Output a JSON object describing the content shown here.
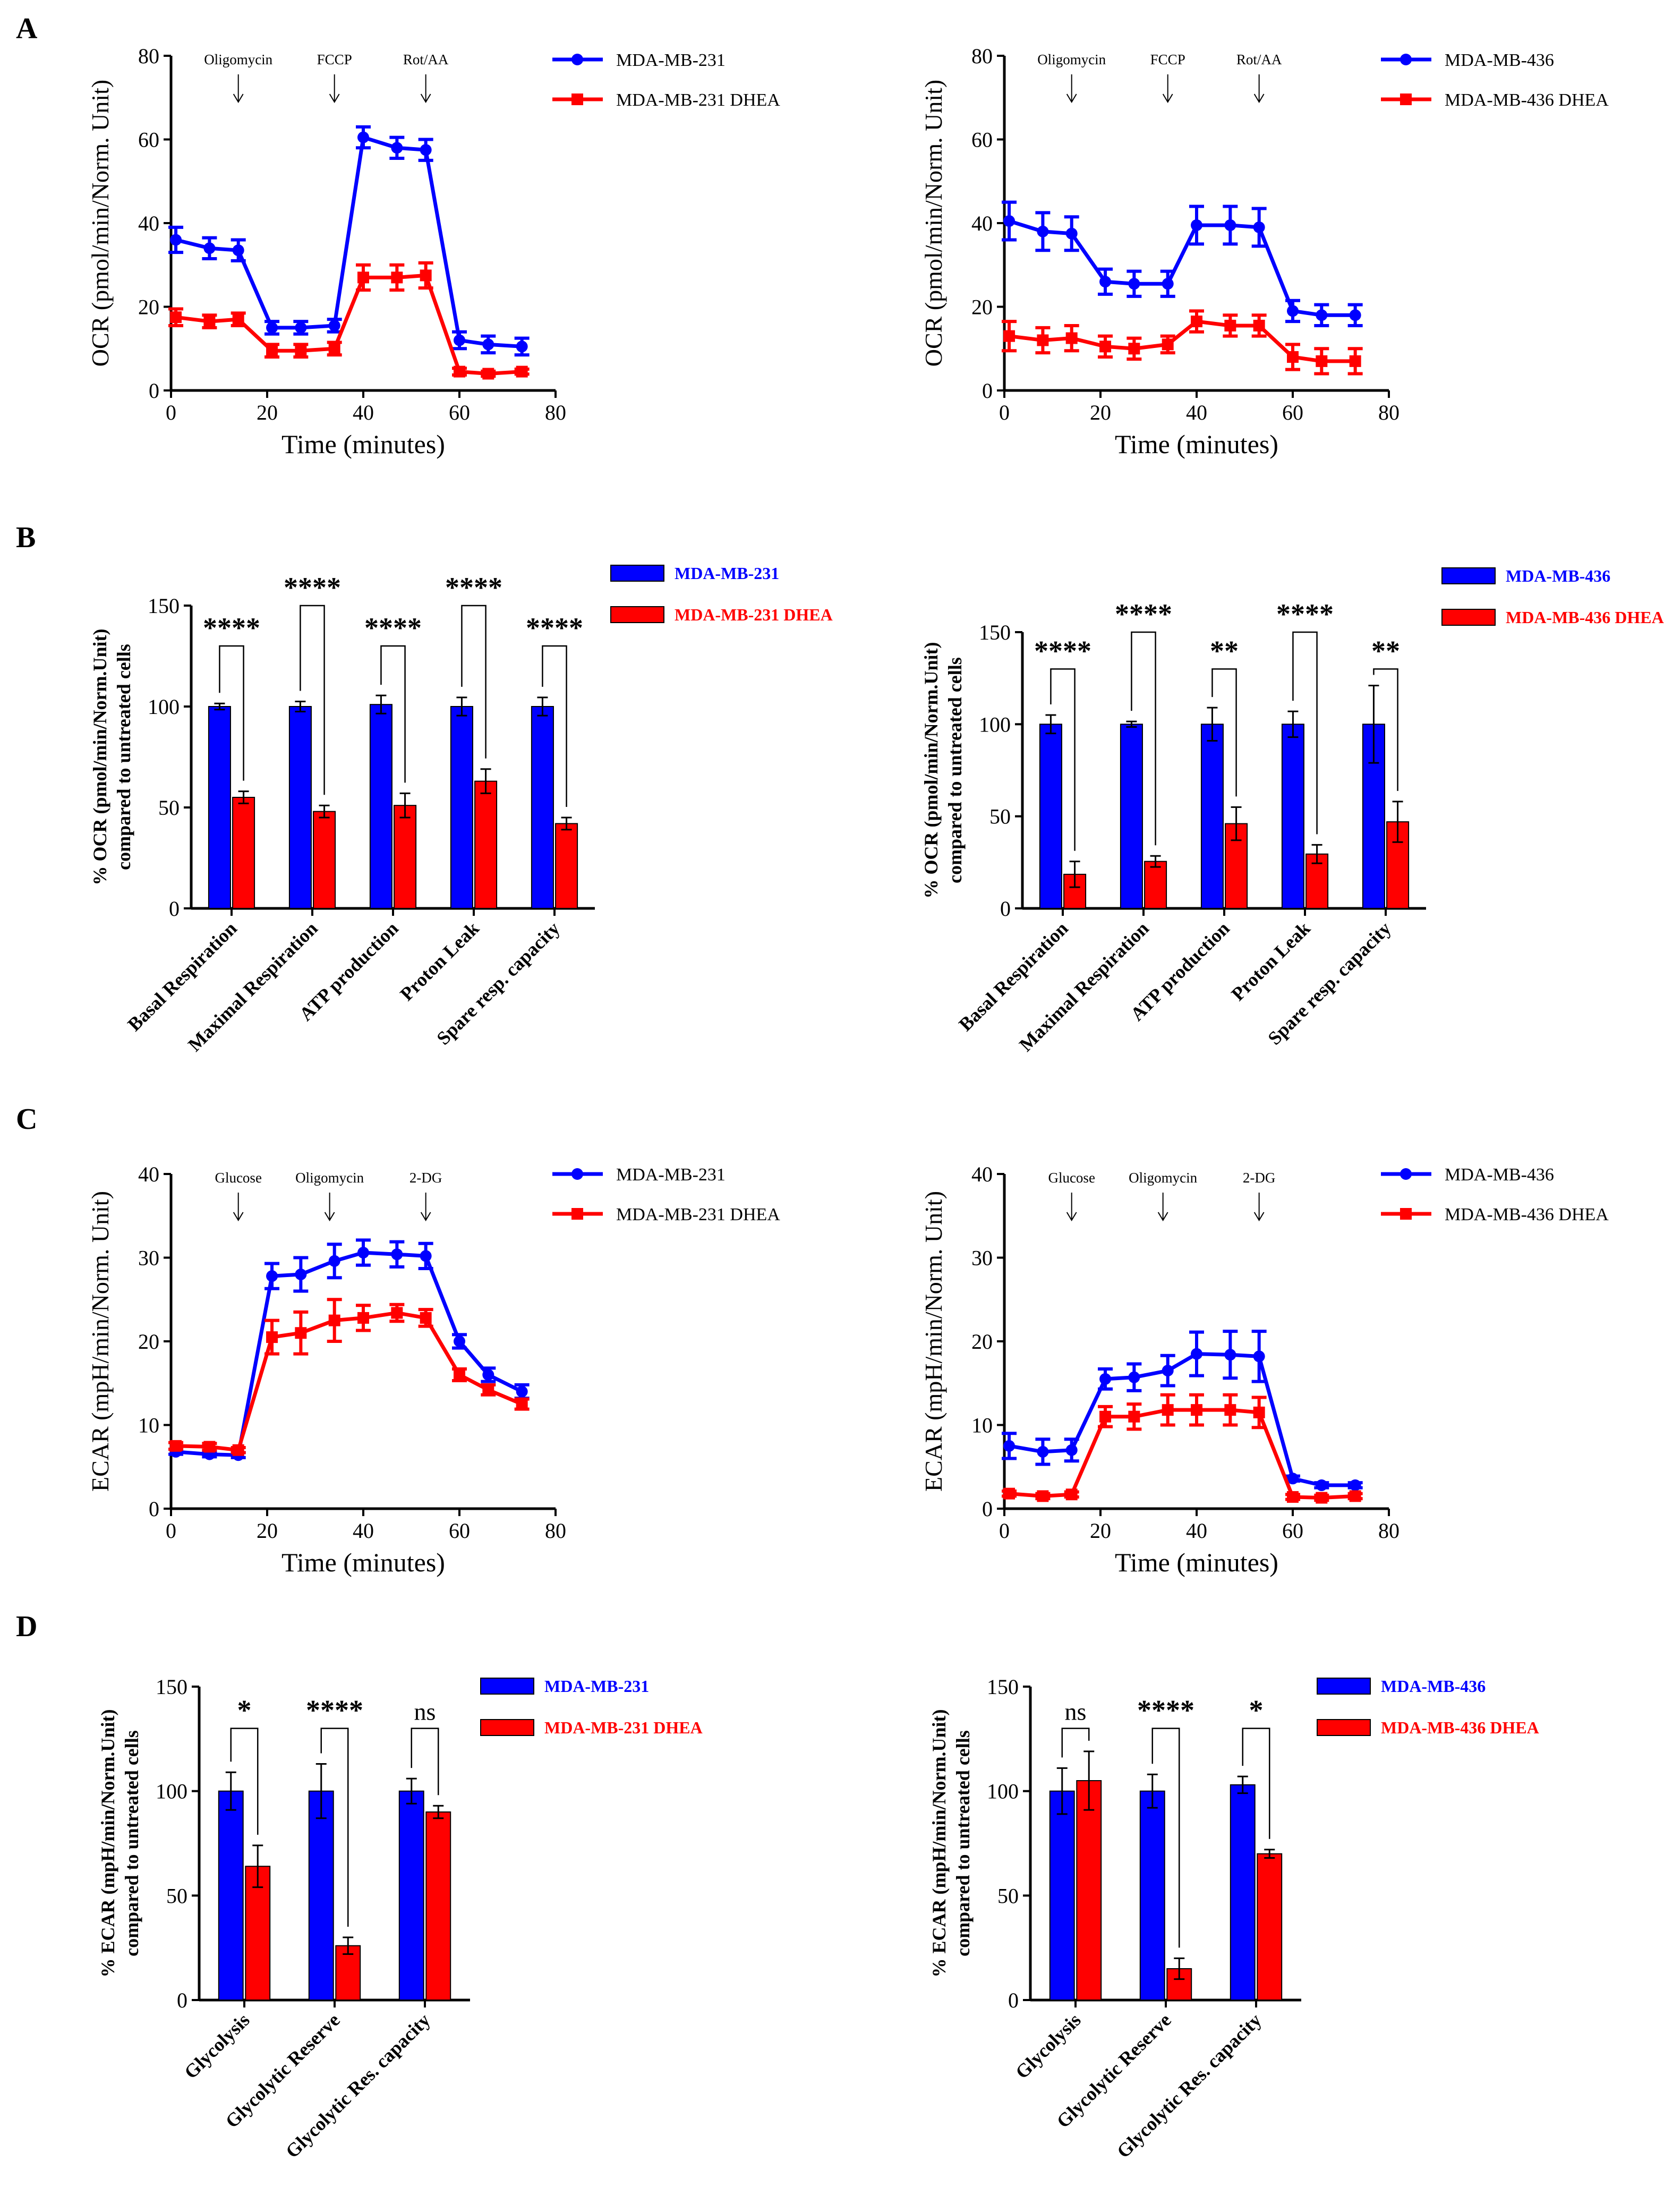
{
  "figure": {
    "panel_letters": [
      "A",
      "B",
      "C",
      "D"
    ],
    "colors": {
      "control": "#0000ff",
      "dhea": "#ff0000",
      "axis": "#000000"
    }
  },
  "chart_data": [
    {
      "id": "A1",
      "type": "line",
      "panel": "A",
      "xlabel": "Time (minutes)",
      "ylabel": "OCR (pmol/min/Norm. Unit)",
      "xlim": [
        0,
        80
      ],
      "ylim": [
        0,
        80
      ],
      "xticks": [
        0,
        20,
        40,
        60,
        80
      ],
      "yticks": [
        0,
        20,
        40,
        60,
        80
      ],
      "annotations": [
        {
          "label": "Oligomycin",
          "x": 14
        },
        {
          "label": "FCCP",
          "x": 34
        },
        {
          "label": "Rot/AA",
          "x": 53
        }
      ],
      "x": [
        1,
        8,
        14,
        21,
        27,
        34,
        40,
        47,
        53,
        60,
        66,
        73
      ],
      "series": [
        {
          "name": "MDA-MB-231",
          "marker": "circle",
          "color": "#0000ff",
          "values": [
            36,
            34,
            33.5,
            15,
            15,
            15.5,
            60.5,
            58,
            57.5,
            12,
            11,
            10.5
          ],
          "errors": [
            3,
            2.5,
            2.5,
            1.5,
            1.5,
            1.5,
            2.5,
            2.5,
            2.5,
            2,
            2,
            2
          ]
        },
        {
          "name": "MDA-MB-231 DHEA",
          "marker": "square",
          "color": "#ff0000",
          "values": [
            17.5,
            16.5,
            17,
            9.5,
            9.5,
            10,
            27,
            27,
            27.5,
            4.5,
            4,
            4.5
          ],
          "errors": [
            2,
            1.5,
            1.5,
            1.5,
            1.5,
            1.5,
            3,
            3,
            3,
            0.8,
            0.6,
            0.6
          ]
        }
      ]
    },
    {
      "id": "A2",
      "type": "line",
      "panel": "A",
      "xlabel": "Time (minutes)",
      "ylabel": "OCR (pmol/min/Norm. Unit)",
      "xlim": [
        0,
        80
      ],
      "ylim": [
        0,
        80
      ],
      "xticks": [
        0,
        20,
        40,
        60,
        80
      ],
      "yticks": [
        0,
        20,
        40,
        60,
        80
      ],
      "annotations": [
        {
          "label": "Oligomycin",
          "x": 14
        },
        {
          "label": "FCCP",
          "x": 34
        },
        {
          "label": "Rot/AA",
          "x": 53
        }
      ],
      "x": [
        1,
        8,
        14,
        21,
        27,
        34,
        40,
        47,
        53,
        60,
        66,
        73
      ],
      "series": [
        {
          "name": "MDA-MB-436",
          "marker": "circle",
          "color": "#0000ff",
          "values": [
            40.5,
            38,
            37.5,
            26,
            25.5,
            25.5,
            39.5,
            39.5,
            39,
            19,
            18,
            18
          ],
          "errors": [
            4.5,
            4.5,
            4,
            3,
            3,
            3,
            4.5,
            4.5,
            4.5,
            2.5,
            2.5,
            2.5
          ]
        },
        {
          "name": "MDA-MB-436 DHEA",
          "marker": "square",
          "color": "#ff0000",
          "values": [
            13,
            12,
            12.5,
            10.5,
            10,
            11,
            16.5,
            15.5,
            15.5,
            8,
            7,
            7
          ],
          "errors": [
            3.5,
            3,
            3,
            2.5,
            2.5,
            2,
            2.5,
            2.5,
            2.5,
            3,
            3,
            3
          ]
        }
      ]
    },
    {
      "id": "B1",
      "type": "bar",
      "panel": "B",
      "ylabel": [
        "% OCR (pmol/min/Norm.Unit)",
        "compared to untreated cells"
      ],
      "ylim": [
        0,
        150
      ],
      "yticks": [
        0,
        50,
        100,
        150
      ],
      "categories": [
        "Basal Respiration",
        "Maximal Respiration",
        "ATP production",
        "Proton Leak",
        "Spare resp. capacity"
      ],
      "significance": [
        "****",
        "****",
        "****",
        "****",
        "****"
      ],
      "bracket_tops": [
        130,
        150,
        130,
        150,
        130
      ],
      "series": [
        {
          "name": "MDA-MB-231",
          "color": "#0000ff",
          "values": [
            100,
            100,
            101,
            100,
            100
          ],
          "errors": [
            1.5,
            2.5,
            4.5,
            4.5,
            4.5
          ]
        },
        {
          "name": "MDA-MB-231 DHEA",
          "color": "#ff0000",
          "values": [
            55,
            48,
            51,
            63,
            42
          ],
          "errors": [
            3,
            3,
            6,
            6,
            3
          ]
        }
      ]
    },
    {
      "id": "B2",
      "type": "bar",
      "panel": "B",
      "ylabel": [
        "% OCR (pmol/min/Norm.Unit)",
        "compared to untreated cells"
      ],
      "ylim": [
        0,
        150
      ],
      "yticks": [
        0,
        50,
        100,
        150
      ],
      "categories": [
        "Basal Respiration",
        "Maximal Respiration",
        "ATP production",
        "Proton Leak",
        "Spare resp. capacity"
      ],
      "significance": [
        "****",
        "****",
        "**",
        "****",
        "**"
      ],
      "bracket_tops": [
        130,
        150,
        130,
        150,
        130
      ],
      "series": [
        {
          "name": "MDA-MB-436",
          "color": "#0000ff",
          "values": [
            100,
            100,
            100,
            100,
            100
          ],
          "errors": [
            5,
            1.5,
            9,
            7,
            21
          ]
        },
        {
          "name": "MDA-MB-436 DHEA",
          "color": "#ff0000",
          "values": [
            18.5,
            25.5,
            46,
            29.5,
            47
          ],
          "errors": [
            7,
            3,
            9,
            5,
            11
          ]
        }
      ]
    },
    {
      "id": "C1",
      "type": "line",
      "panel": "C",
      "xlabel": "Time (minutes)",
      "ylabel": "ECAR (mpH/min/Norm. Unit)",
      "xlim": [
        0,
        80
      ],
      "ylim": [
        0,
        40
      ],
      "xticks": [
        0,
        20,
        40,
        60,
        80
      ],
      "yticks": [
        0,
        10,
        20,
        30,
        40
      ],
      "annotations": [
        {
          "label": "Glucose",
          "x": 14
        },
        {
          "label": "Oligomycin",
          "x": 33
        },
        {
          "label": "2-DG",
          "x": 53
        }
      ],
      "x": [
        1,
        8,
        14,
        21,
        27,
        34,
        40,
        47,
        53,
        60,
        66,
        73
      ],
      "series": [
        {
          "name": "MDA-MB-231",
          "marker": "circle",
          "color": "#0000ff",
          "values": [
            6.8,
            6.5,
            6.4,
            27.8,
            28,
            29.6,
            30.6,
            30.4,
            30.2,
            20,
            16,
            14
          ],
          "errors": [
            0.3,
            0.3,
            0.3,
            1.5,
            2,
            2,
            1.5,
            1.5,
            1.5,
            0.8,
            0.8,
            0.8
          ]
        },
        {
          "name": "MDA-MB-231 DHEA",
          "marker": "square",
          "color": "#ff0000",
          "values": [
            7.5,
            7.4,
            7,
            20.5,
            21,
            22.5,
            22.8,
            23.4,
            22.8,
            16,
            14.2,
            12.5
          ],
          "errors": [
            0.4,
            0.4,
            0.3,
            2,
            2.5,
            2.5,
            1.5,
            1,
            1,
            0.7,
            0.6,
            0.6
          ]
        }
      ]
    },
    {
      "id": "C2",
      "type": "line",
      "panel": "C",
      "xlabel": "Time (minutes)",
      "ylabel": "ECAR (mpH/min/Norm. Unit)",
      "xlim": [
        0,
        80
      ],
      "ylim": [
        0,
        40
      ],
      "xticks": [
        0,
        20,
        40,
        60,
        80
      ],
      "yticks": [
        0,
        10,
        20,
        30,
        40
      ],
      "annotations": [
        {
          "label": "Glucose",
          "x": 14
        },
        {
          "label": "Oligomycin",
          "x": 33
        },
        {
          "label": "2-DG",
          "x": 53
        }
      ],
      "x": [
        1,
        8,
        14,
        21,
        27,
        34,
        40,
        47,
        53,
        60,
        66,
        73
      ],
      "series": [
        {
          "name": "MDA-MB-436",
          "marker": "circle",
          "color": "#0000ff",
          "values": [
            7.5,
            6.8,
            7,
            15.5,
            15.7,
            16.5,
            18.5,
            18.4,
            18.2,
            3.6,
            2.8,
            2.8
          ],
          "errors": [
            1.5,
            1.5,
            1.3,
            1.2,
            1.6,
            1.8,
            2.6,
            2.8,
            3,
            0.3,
            0.3,
            0.3
          ]
        },
        {
          "name": "MDA-MB-436 DHEA",
          "marker": "square",
          "color": "#ff0000",
          "values": [
            1.8,
            1.5,
            1.7,
            11,
            11,
            11.8,
            11.8,
            11.8,
            11.5,
            1.4,
            1.3,
            1.5
          ],
          "errors": [
            0.3,
            0.3,
            0.3,
            1.2,
            1.5,
            1.8,
            1.8,
            1.8,
            1.8,
            0.3,
            0.3,
            0.3
          ]
        }
      ]
    },
    {
      "id": "D1",
      "type": "bar",
      "panel": "D",
      "ylabel": [
        "% ECAR (mpH/min/Norm.Unit)",
        "compared to untreated cells"
      ],
      "ylim": [
        0,
        150
      ],
      "yticks": [
        0,
        50,
        100,
        150
      ],
      "categories": [
        "Glycolysis",
        "Glycolytic Reserve",
        "Glycolytic Res. capacity"
      ],
      "significance": [
        "*",
        "****",
        "ns"
      ],
      "bracket_tops": [
        130,
        130,
        130
      ],
      "series": [
        {
          "name": "MDA-MB-231",
          "color": "#0000ff",
          "values": [
            100,
            100,
            100
          ],
          "errors": [
            9,
            13,
            6
          ]
        },
        {
          "name": "MDA-MB-231 DHEA",
          "color": "#ff0000",
          "values": [
            64,
            26,
            90
          ],
          "errors": [
            10,
            4,
            3
          ]
        }
      ]
    },
    {
      "id": "D2",
      "type": "bar",
      "panel": "D",
      "ylabel": [
        "% ECAR (mpH/min/Norm.Unit)",
        "compared to untreated cells"
      ],
      "ylim": [
        0,
        150
      ],
      "yticks": [
        0,
        50,
        100,
        150
      ],
      "categories": [
        "Glycolysis",
        "Glycolytic Reserve",
        "Glycolytic Res. capacity"
      ],
      "significance": [
        "ns",
        "****",
        "*"
      ],
      "bracket_tops": [
        130,
        130,
        130
      ],
      "series": [
        {
          "name": "MDA-MB-436",
          "color": "#0000ff",
          "values": [
            100,
            100,
            103
          ],
          "errors": [
            11,
            8,
            4
          ]
        },
        {
          "name": "MDA-MB-436 DHEA",
          "color": "#ff0000",
          "values": [
            105,
            15,
            70
          ],
          "errors": [
            14,
            5,
            2
          ]
        }
      ]
    }
  ]
}
